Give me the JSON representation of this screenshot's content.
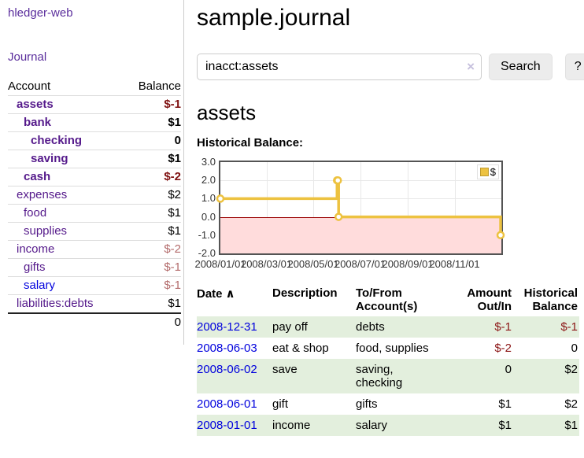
{
  "colors": {
    "link_purple": "#551a8b",
    "link_blue": "#0000dd",
    "negative_strong": "#7f1111",
    "negative_dim": "#b36b6b",
    "negative_table": "#8c1616",
    "row_stripe_green": "#e3efdd",
    "chart_line": "#edc240",
    "chart_negative_region": "#ffdcdc",
    "chart_zero_line": "#990000"
  },
  "sidebar": {
    "brand": "hledger-web",
    "nav": {
      "journal": "Journal"
    },
    "accounts_table": {
      "headers": {
        "account": "Account",
        "balance": "Balance"
      },
      "rows": [
        {
          "label": "assets",
          "indent": 1,
          "balance": "$-1",
          "bold": true,
          "balance_style": "neg-strong",
          "label_color": "purple"
        },
        {
          "label": "bank",
          "indent": 2,
          "balance": "$1",
          "bold": true,
          "balance_style": "pos",
          "label_color": "purple"
        },
        {
          "label": "checking",
          "indent": 3,
          "balance": "0",
          "bold": true,
          "balance_style": "pos",
          "label_color": "purple"
        },
        {
          "label": "saving",
          "indent": 3,
          "balance": "$1",
          "bold": true,
          "balance_style": "pos",
          "label_color": "purple"
        },
        {
          "label": "cash",
          "indent": 2,
          "balance": "$-2",
          "bold": true,
          "balance_style": "neg-strong",
          "label_color": "purple"
        },
        {
          "label": "expenses",
          "indent": 1,
          "balance": "$2",
          "bold": false,
          "balance_style": "pos",
          "label_color": "purple"
        },
        {
          "label": "food",
          "indent": 2,
          "balance": "$1",
          "bold": false,
          "balance_style": "pos",
          "label_color": "purple"
        },
        {
          "label": "supplies",
          "indent": 2,
          "balance": "$1",
          "bold": false,
          "balance_style": "pos",
          "label_color": "purple"
        },
        {
          "label": "income",
          "indent": 1,
          "balance": "$-2",
          "bold": false,
          "balance_style": "neg-dim",
          "label_color": "purple"
        },
        {
          "label": "gifts",
          "indent": 2,
          "balance": "$-1",
          "bold": false,
          "balance_style": "neg-dim",
          "label_color": "purple"
        },
        {
          "label": "salary",
          "indent": 2,
          "balance": "$-1",
          "bold": false,
          "balance_style": "neg-dim",
          "label_color": "blue"
        },
        {
          "label": "liabilities:debts",
          "indent": 1,
          "balance": "$1",
          "bold": false,
          "balance_style": "pos",
          "label_color": "purple"
        }
      ],
      "total": "0"
    }
  },
  "header": {
    "title": "sample.journal"
  },
  "search": {
    "value": "inacct:assets",
    "clear_icon": "×",
    "button_label": "Search",
    "help_label": "?"
  },
  "account_page": {
    "heading": "assets",
    "chart_label": "Historical Balance:"
  },
  "chart_data": {
    "type": "line",
    "step": true,
    "title": "Historical Balance",
    "series": [
      {
        "name": "$",
        "color": "#edc240",
        "points": [
          {
            "date": "2008-01-01",
            "value": 1
          },
          {
            "date": "2008-06-01",
            "value": 2
          },
          {
            "date": "2008-06-02",
            "value": 2
          },
          {
            "date": "2008-06-03",
            "value": 0
          },
          {
            "date": "2008-12-31",
            "value": -1
          }
        ]
      }
    ],
    "x_range": {
      "start": "2008-01-01",
      "end": "2009-01-01"
    },
    "ylim": [
      -2.0,
      3.0
    ],
    "y_ticks": [
      3.0,
      2.0,
      1.0,
      0.0,
      -1.0,
      -2.0
    ],
    "y_tick_labels": [
      "3.0",
      "2.0",
      "1.0",
      "0.0",
      "-1.0",
      "-2.0"
    ],
    "x_ticks": [
      {
        "label": "2008/01/01",
        "date": "2008-01-01"
      },
      {
        "label": "2008/03/01",
        "date": "2008-03-01"
      },
      {
        "label": "2008/05/01",
        "date": "2008-05-01"
      },
      {
        "label": "2008/07/01",
        "date": "2008-07-01"
      },
      {
        "label": "2008/09/01",
        "date": "2008-09-01"
      },
      {
        "label": "2008/11/01",
        "date": "2008-11-01"
      }
    ],
    "legend": {
      "label": "$",
      "position": "top-right"
    },
    "grid": true
  },
  "register_table": {
    "sort_icon": "∧",
    "headers": {
      "date": "Date",
      "description": "Description",
      "accounts": "To/From\nAccount(s)",
      "amount": "Amount\nOut/In",
      "balance": "Historical\nBalance"
    },
    "rows": [
      {
        "date": "2008-12-31",
        "description": "pay off",
        "accounts": "debts",
        "amount": "$-1",
        "amount_neg": true,
        "balance": "$-1",
        "balance_neg": true
      },
      {
        "date": "2008-06-03",
        "description": "eat & shop",
        "accounts": "food, supplies",
        "amount": "$-2",
        "amount_neg": true,
        "balance": "0",
        "balance_neg": false
      },
      {
        "date": "2008-06-02",
        "description": "save",
        "accounts": "saving,\nchecking",
        "amount": "0",
        "amount_neg": false,
        "balance": "$2",
        "balance_neg": false
      },
      {
        "date": "2008-06-01",
        "description": "gift",
        "accounts": "gifts",
        "amount": "$1",
        "amount_neg": false,
        "balance": "$2",
        "balance_neg": false
      },
      {
        "date": "2008-01-01",
        "description": "income",
        "accounts": "salary",
        "amount": "$1",
        "amount_neg": false,
        "balance": "$1",
        "balance_neg": false
      }
    ]
  }
}
